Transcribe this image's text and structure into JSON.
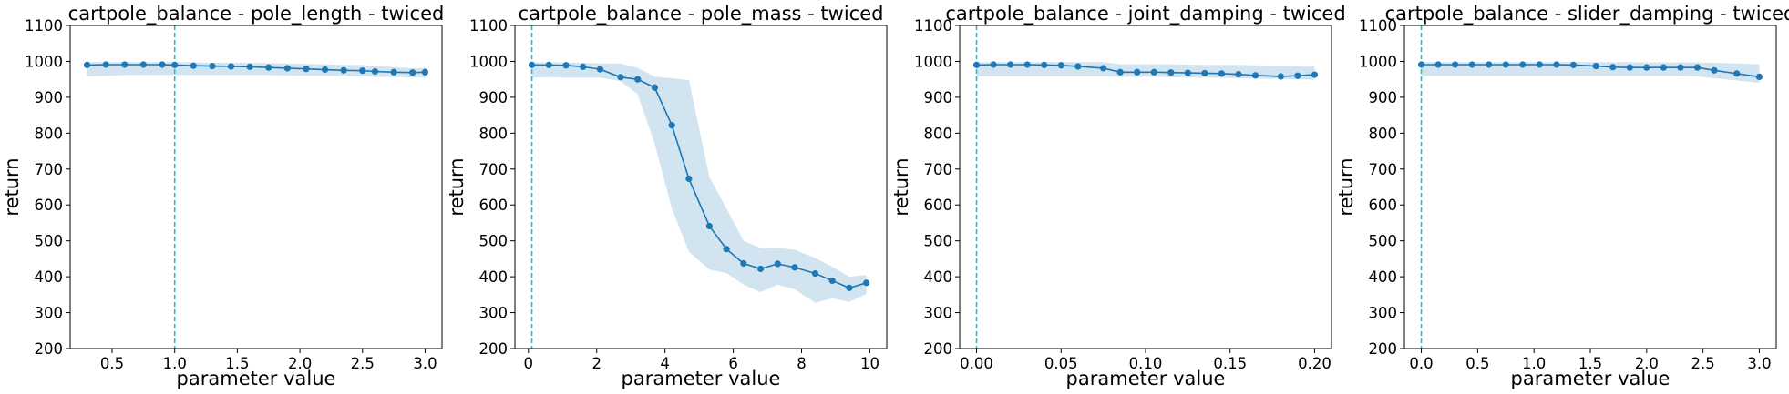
{
  "chart_data": [
    {
      "type": "line",
      "title": "cartpole_balance - pole_length - twiced",
      "xlabel": "parameter value",
      "ylabel": "return",
      "xlim": [
        0.165,
        3.135
      ],
      "ylim": [
        200,
        1100
      ],
      "xticks": [
        0.5,
        1.0,
        1.5,
        2.0,
        2.5,
        3.0
      ],
      "xtick_labels": [
        "0.5",
        "1.0",
        "1.5",
        "2.0",
        "2.5",
        "3.0"
      ],
      "yticks": [
        200,
        300,
        400,
        500,
        600,
        700,
        800,
        900,
        1000,
        1100
      ],
      "ytick_labels": [
        "200",
        "300",
        "400",
        "500",
        "600",
        "700",
        "800",
        "900",
        "1000",
        "1100"
      ],
      "reference_x": 1.0,
      "reference_color": "#17becf",
      "line_color": "#1f77b4",
      "band_color": "#1f77b4",
      "x": [
        0.3,
        0.45,
        0.6,
        0.75,
        0.9,
        1.0,
        1.15,
        1.3,
        1.45,
        1.6,
        1.75,
        1.9,
        2.05,
        2.2,
        2.35,
        2.5,
        2.6,
        2.75,
        2.9,
        3.0
      ],
      "y": [
        990,
        991,
        991,
        991,
        991,
        990,
        988,
        987,
        986,
        985,
        983,
        981,
        979,
        977,
        975,
        974,
        972,
        970,
        969,
        970
      ],
      "upper": [
        998,
        998,
        998,
        998,
        998,
        998,
        997,
        996,
        996,
        996,
        995,
        994,
        993,
        992,
        990,
        990,
        987,
        984,
        981,
        982
      ],
      "lower": [
        958,
        960,
        962,
        962,
        962,
        962,
        962,
        962,
        962,
        962,
        962,
        961,
        961,
        960,
        959,
        958,
        957,
        956,
        955,
        955
      ]
    },
    {
      "type": "line",
      "title": "cartpole_balance - pole_mass - twiced",
      "xlabel": "parameter value",
      "ylabel": "return",
      "xlim": [
        -0.395,
        10.495
      ],
      "ylim": [
        200,
        1100
      ],
      "xticks": [
        0,
        2,
        4,
        6,
        8,
        10
      ],
      "xtick_labels": [
        "0",
        "2",
        "4",
        "6",
        "8",
        "10"
      ],
      "yticks": [
        200,
        300,
        400,
        500,
        600,
        700,
        800,
        900,
        1000,
        1100
      ],
      "ytick_labels": [
        "200",
        "300",
        "400",
        "500",
        "600",
        "700",
        "800",
        "900",
        "1000",
        "1100"
      ],
      "reference_x": 0.1,
      "reference_color": "#17becf",
      "line_color": "#1f77b4",
      "band_color": "#1f77b4",
      "x": [
        0.1,
        0.6,
        1.1,
        1.6,
        2.1,
        2.7,
        3.2,
        3.7,
        4.2,
        4.7,
        5.3,
        5.8,
        6.3,
        6.8,
        7.3,
        7.8,
        8.4,
        8.9,
        9.4,
        9.9
      ],
      "y": [
        990,
        990,
        989,
        985,
        978,
        956,
        950,
        927,
        822,
        673,
        541,
        477,
        437,
        422,
        436,
        426,
        409,
        389,
        369,
        383
      ],
      "upper": [
        997,
        997,
        997,
        996,
        994,
        994,
        982,
        957,
        953,
        948,
        678,
        590,
        500,
        480,
        480,
        475,
        452,
        428,
        400,
        405
      ],
      "lower": [
        955,
        956,
        955,
        955,
        955,
        945,
        908,
        770,
        590,
        470,
        420,
        410,
        378,
        357,
        378,
        365,
        327,
        340,
        330,
        352
      ]
    },
    {
      "type": "line",
      "title": "cartpole_balance - joint_damping - twiced",
      "xlabel": "parameter value",
      "ylabel": "return",
      "xlim": [
        -0.01,
        0.21
      ],
      "ylim": [
        200,
        1100
      ],
      "xticks": [
        0.0,
        0.05,
        0.1,
        0.15,
        0.2
      ],
      "xtick_labels": [
        "0.00",
        "0.05",
        "0.10",
        "0.15",
        "0.20"
      ],
      "yticks": [
        200,
        300,
        400,
        500,
        600,
        700,
        800,
        900,
        1000,
        1100
      ],
      "ytick_labels": [
        "200",
        "300",
        "400",
        "500",
        "600",
        "700",
        "800",
        "900",
        "1000",
        "1100"
      ],
      "reference_x": 0.0,
      "reference_color": "#17becf",
      "line_color": "#1f77b4",
      "band_color": "#1f77b4",
      "x": [
        0.0,
        0.01,
        0.02,
        0.03,
        0.04,
        0.05,
        0.06,
        0.075,
        0.085,
        0.095,
        0.105,
        0.115,
        0.125,
        0.135,
        0.145,
        0.155,
        0.165,
        0.18,
        0.19,
        0.2
      ],
      "y": [
        990,
        991,
        991,
        991,
        990,
        989,
        986,
        981,
        970,
        970,
        970,
        969,
        968,
        967,
        966,
        964,
        961,
        958,
        960,
        963
      ],
      "upper": [
        998,
        998,
        998,
        998,
        998,
        998,
        998,
        998,
        992,
        992,
        992,
        992,
        991,
        990,
        990,
        990,
        989,
        987,
        986,
        985
      ],
      "lower": [
        958,
        958,
        958,
        958,
        958,
        958,
        958,
        958,
        957,
        957,
        957,
        956,
        955,
        955,
        954,
        953,
        952,
        951,
        950,
        949
      ]
    },
    {
      "type": "line",
      "title": "cartpole_balance - slider_damping - twiced",
      "xlabel": "parameter value",
      "ylabel": "return",
      "xlim": [
        -0.15,
        3.15
      ],
      "ylim": [
        200,
        1100
      ],
      "xticks": [
        0.0,
        0.5,
        1.0,
        1.5,
        2.0,
        2.5,
        3.0
      ],
      "xtick_labels": [
        "0.0",
        "0.5",
        "1.0",
        "1.5",
        "2.0",
        "2.5",
        "3.0"
      ],
      "yticks": [
        200,
        300,
        400,
        500,
        600,
        700,
        800,
        900,
        1000,
        1100
      ],
      "ytick_labels": [
        "200",
        "300",
        "400",
        "500",
        "600",
        "700",
        "800",
        "900",
        "1000",
        "1100"
      ],
      "reference_x": 0.0,
      "reference_color": "#17becf",
      "line_color": "#1f77b4",
      "band_color": "#1f77b4",
      "x": [
        0.0,
        0.15,
        0.3,
        0.45,
        0.6,
        0.75,
        0.9,
        1.05,
        1.2,
        1.35,
        1.55,
        1.7,
        1.85,
        2.0,
        2.15,
        2.3,
        2.45,
        2.6,
        2.8,
        3.0
      ],
      "y": [
        991,
        991,
        991,
        991,
        991,
        991,
        991,
        991,
        991,
        990,
        987,
        984,
        983,
        983,
        983,
        983,
        983,
        975,
        966,
        957
      ],
      "upper": [
        998,
        998,
        998,
        998,
        998,
        998,
        998,
        998,
        998,
        998,
        998,
        998,
        998,
        997,
        997,
        997,
        997,
        996,
        994,
        992
      ],
      "lower": [
        960,
        960,
        960,
        960,
        960,
        960,
        960,
        960,
        960,
        960,
        960,
        960,
        960,
        960,
        960,
        959,
        958,
        953,
        947,
        940
      ]
    }
  ]
}
